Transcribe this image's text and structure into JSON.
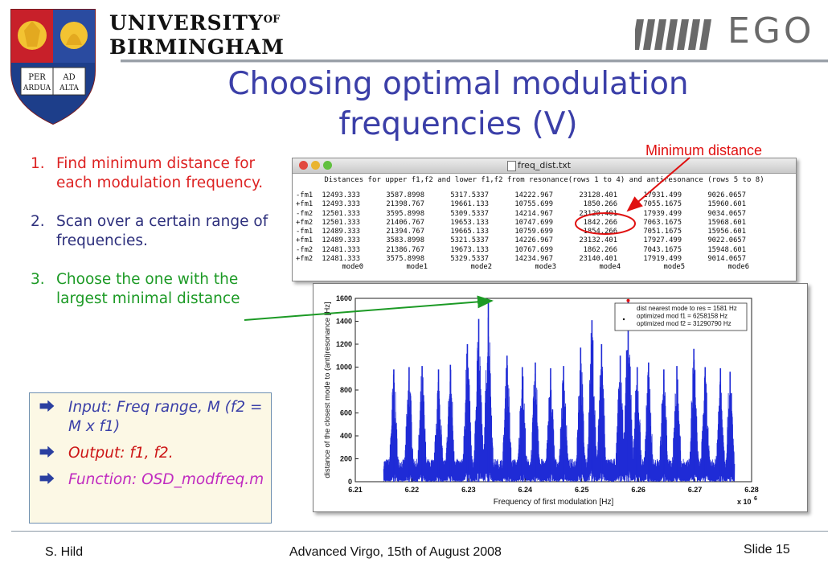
{
  "header": {
    "university_line1": "UNIVERSITY",
    "university_of": "OF",
    "university_line2": "BIRMINGHAM",
    "crest_motto": [
      "PER",
      "AD",
      "ARDUA",
      "ALTA"
    ],
    "ego_text": "EGO"
  },
  "title": {
    "line1": "Choosing optimal modulation",
    "line2": "frequencies (V)"
  },
  "steps": [
    {
      "num": "1.",
      "text": "Find minimum distance for each modulation frequency."
    },
    {
      "num": "2.",
      "text": "Scan over a certain range of frequencies."
    },
    {
      "num": "3.",
      "text": "Choose the one with the largest minimal distance"
    }
  ],
  "info_box": {
    "bullet_icon": "right-arrow-icon",
    "items": [
      {
        "text": "Input: Freq range, M (f2 = M x f1)"
      },
      {
        "text": "Output: f1, f2."
      },
      {
        "text": "Function: OSD_modfreq.m"
      }
    ]
  },
  "annotation": {
    "min_distance_label": "Minimum distance"
  },
  "table_window": {
    "title": "freq_dist.txt",
    "heading": "Distances for upper f1,f2 and lower f1,f2 from resonance(rows 1 to 4) and antiresonance (rows 5 to 8)",
    "rows": [
      {
        "label": "-fm1",
        "values": [
          "12493.333",
          "3587.8998",
          "5317.5337",
          "14222.967",
          "23128.401",
          "17931.499",
          "9026.0657"
        ]
      },
      {
        "label": "+fm1",
        "values": [
          "12493.333",
          "21398.767",
          "19661.133",
          "10755.699",
          "1850.266",
          "7055.1675",
          "15960.601"
        ]
      },
      {
        "label": "-fm2",
        "values": [
          "12501.333",
          "3595.8998",
          "5309.5337",
          "14214.967",
          "23120.401",
          "17939.499",
          "9034.0657"
        ]
      },
      {
        "label": "+fm2",
        "values": [
          "12501.333",
          "21406.767",
          "19653.133",
          "10747.699",
          "1842.266",
          "7063.1675",
          "15968.601"
        ]
      },
      {
        "label": "-fm1",
        "values": [
          "12489.333",
          "21394.767",
          "19665.133",
          "10759.699",
          "1854.266",
          "7051.1675",
          "15956.601"
        ]
      },
      {
        "label": "+fm1",
        "values": [
          "12489.333",
          "3583.8998",
          "5321.5337",
          "14226.967",
          "23132.401",
          "17927.499",
          "9022.0657"
        ]
      },
      {
        "label": "-fm2",
        "values": [
          "12481.333",
          "21386.767",
          "19673.133",
          "10767.699",
          "1862.266",
          "7043.1675",
          "15948.601"
        ]
      },
      {
        "label": "+fm2",
        "values": [
          "12481.333",
          "3575.8998",
          "5329.5337",
          "14234.967",
          "23140.401",
          "17919.499",
          "9014.0657"
        ]
      }
    ],
    "modes": [
      "mode0",
      "mode1",
      "mode2",
      "mode3",
      "mode4",
      "mode5",
      "mode6"
    ]
  },
  "chart_data": {
    "type": "line",
    "xlabel": "Frequency of first modulation [Hz]",
    "ylabel": "distance of the closest mode to (anti)resonance [Hz]",
    "x_multiplier": "x 10",
    "x_multiplier_exp": "6",
    "xlim": [
      6.21,
      6.28
    ],
    "ylim": [
      0,
      1600
    ],
    "x_ticks": [
      "6.21",
      "6.22",
      "6.23",
      "6.24",
      "6.25",
      "6.26",
      "6.27",
      "6.28"
    ],
    "y_ticks": [
      "0",
      "200",
      "400",
      "600",
      "800",
      "1000",
      "1200",
      "1400",
      "1600"
    ],
    "data_range_x": [
      6.215,
      6.277
    ],
    "series_color": "#1f2bd6",
    "marker_color": "#e01010",
    "legend": {
      "placement": "top-right",
      "entries": [
        "dist  nearest mode to res = 1581 Hz",
        "optimized mod f1 = 6258158 Hz",
        "optimized mod f2 = 31290790 Hz"
      ]
    },
    "peaks": [
      {
        "x": 6.2168,
        "y": 980
      },
      {
        "x": 6.2195,
        "y": 1000
      },
      {
        "x": 6.2218,
        "y": 1010
      },
      {
        "x": 6.2247,
        "y": 980
      },
      {
        "x": 6.2268,
        "y": 1020
      },
      {
        "x": 6.2298,
        "y": 1200
      },
      {
        "x": 6.2318,
        "y": 1420
      },
      {
        "x": 6.2335,
        "y": 1580
      },
      {
        "x": 6.2368,
        "y": 1100
      },
      {
        "x": 6.2395,
        "y": 1000
      },
      {
        "x": 6.2418,
        "y": 1040
      },
      {
        "x": 6.2445,
        "y": 990
      },
      {
        "x": 6.2468,
        "y": 1010
      },
      {
        "x": 6.2498,
        "y": 1170
      },
      {
        "x": 6.2518,
        "y": 1410
      },
      {
        "x": 6.2535,
        "y": 1200
      },
      {
        "x": 6.2568,
        "y": 1100
      },
      {
        "x": 6.2582,
        "y": 1580
      },
      {
        "x": 6.2598,
        "y": 1000
      },
      {
        "x": 6.2618,
        "y": 1040
      },
      {
        "x": 6.2645,
        "y": 980
      },
      {
        "x": 6.2668,
        "y": 1010
      },
      {
        "x": 6.2698,
        "y": 1160
      },
      {
        "x": 6.2718,
        "y": 1000
      },
      {
        "x": 6.2745,
        "y": 990
      },
      {
        "x": 6.2762,
        "y": 960
      }
    ]
  },
  "footer": {
    "author": "S. Hild",
    "event": "Advanced Virgo, 15th of August 2008",
    "slide": "Slide 15"
  },
  "colors": {
    "title": "#3b3fa8",
    "step1": "#dd2222",
    "step2": "#2d2f7c",
    "step3": "#1c9a25",
    "annotation": "#e01010"
  }
}
